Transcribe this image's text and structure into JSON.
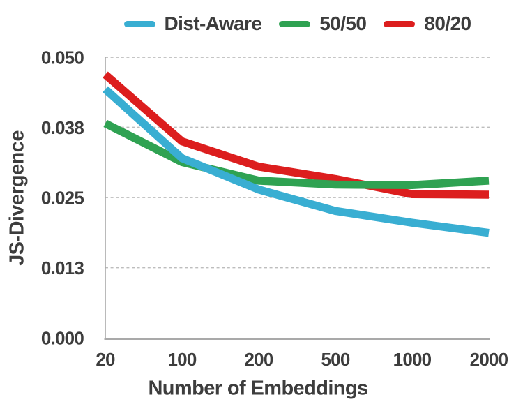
{
  "chart_data": {
    "type": "line",
    "title": "",
    "xlabel": "Number of Embeddings",
    "ylabel": "JS-Divergence",
    "x_tick_labels": [
      "20",
      "100",
      "200",
      "500",
      "1000",
      "2000"
    ],
    "x_values": [
      20,
      100,
      200,
      500,
      1000,
      2000
    ],
    "x_scale": "categorical-even-spacing",
    "y_ticks": [
      {
        "value": 0.0,
        "label": "0.000"
      },
      {
        "value": 0.0125,
        "label": "0.013"
      },
      {
        "value": 0.025,
        "label": "0.025"
      },
      {
        "value": 0.0375,
        "label": "0.038"
      },
      {
        "value": 0.05,
        "label": "0.050"
      }
    ],
    "ylim": [
      0,
      0.05
    ],
    "grid": "horizontal-dashed",
    "legend_position": "top-center",
    "series": [
      {
        "name": "Dist-Aware",
        "color": "#39AED2",
        "values": [
          0.0443,
          0.032,
          0.0264,
          0.0226,
          0.0205,
          0.0187
        ]
      },
      {
        "name": "50/50",
        "color": "#2FA252",
        "values": [
          0.0382,
          0.0313,
          0.028,
          0.0273,
          0.0272,
          0.028
        ]
      },
      {
        "name": "80/20",
        "color": "#DC1E1E",
        "values": [
          0.0469,
          0.035,
          0.0305,
          0.0283,
          0.0256,
          0.0255
        ]
      }
    ]
  },
  "colors": {
    "text": "#3D3D3D",
    "gridline": "#BDBDBD",
    "spine": "#A9A9A9",
    "background": "#FFFFFF"
  }
}
